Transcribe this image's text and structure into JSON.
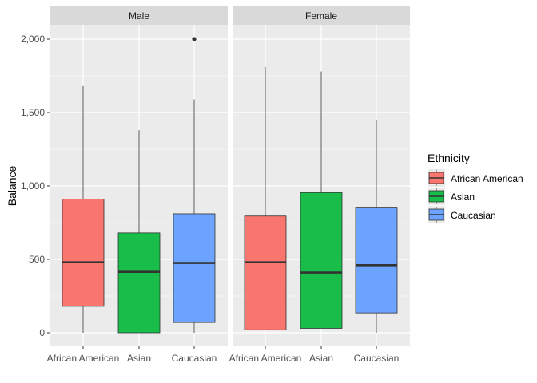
{
  "chart_data": {
    "type": "boxplot",
    "facets": [
      "Male",
      "Female"
    ],
    "categories": [
      "African American",
      "Asian",
      "Caucasian"
    ],
    "ylabel": "Balance",
    "xlabel": "",
    "ylim": [
      -70,
      2110
    ],
    "yticks": [
      0,
      500,
      1000,
      1500,
      2000
    ],
    "ytick_labels": [
      "0",
      "500",
      "1,000",
      "1,500",
      "2,000"
    ],
    "grid": true,
    "legend": {
      "title": "Ethnicity",
      "position": "right",
      "entries": [
        "African American",
        "Asian",
        "Caucasian"
      ]
    },
    "colors": {
      "African American": "#F8766D",
      "Asian": "#19BE4A",
      "Caucasian": "#6BA3FF",
      "panel_bg": "#EBEBEB",
      "strip_bg": "#D9D9D9",
      "grid": "#FFFFFF"
    },
    "boxes": [
      {
        "facet": "Male",
        "category": "African American",
        "min": 0,
        "q1": 180,
        "median": 480,
        "q3": 910,
        "max": 1680,
        "outliers": []
      },
      {
        "facet": "Male",
        "category": "Asian",
        "min": 0,
        "q1": 0,
        "median": 415,
        "q3": 680,
        "max": 1380,
        "outliers": []
      },
      {
        "facet": "Male",
        "category": "Caucasian",
        "min": 0,
        "q1": 70,
        "median": 475,
        "q3": 810,
        "max": 1590,
        "outliers": [
          2000
        ]
      },
      {
        "facet": "Female",
        "category": "African American",
        "min": 20,
        "q1": 20,
        "median": 480,
        "q3": 795,
        "max": 1810,
        "outliers": []
      },
      {
        "facet": "Female",
        "category": "Asian",
        "min": 30,
        "q1": 30,
        "median": 410,
        "q3": 955,
        "max": 1780,
        "outliers": []
      },
      {
        "facet": "Female",
        "category": "Caucasian",
        "min": 0,
        "q1": 135,
        "median": 460,
        "q3": 850,
        "max": 1450,
        "outliers": []
      }
    ]
  }
}
